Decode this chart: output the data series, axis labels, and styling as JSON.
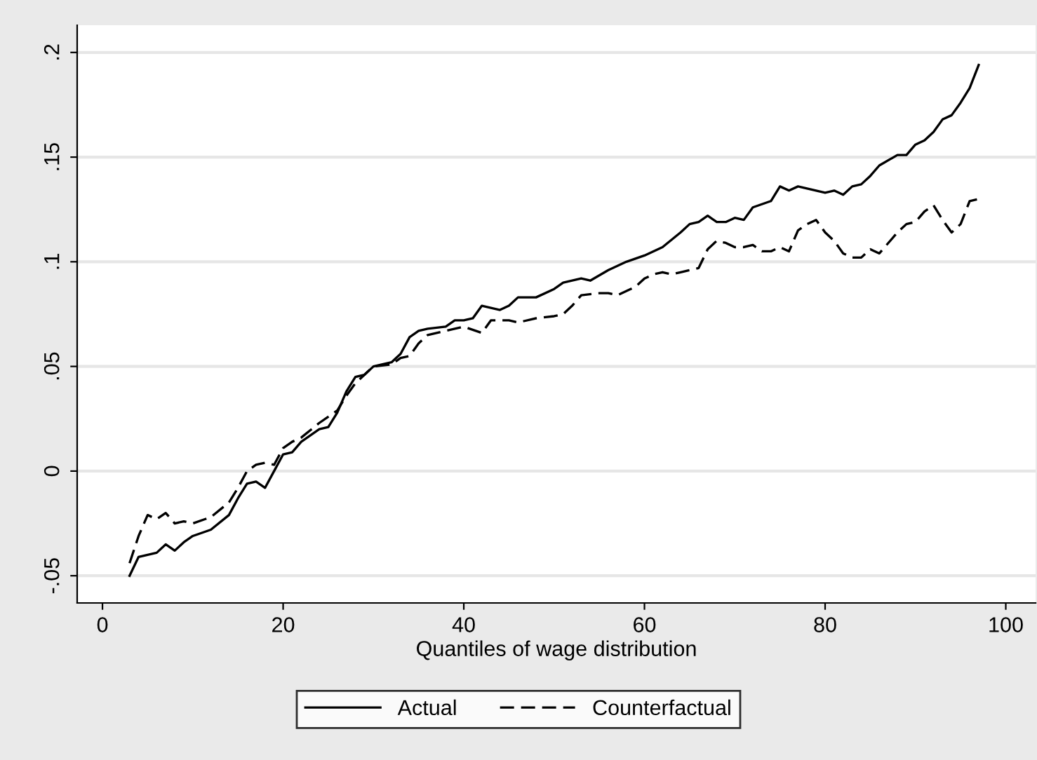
{
  "chart_data": {
    "type": "line",
    "xlabel": "Quantiles of wage distribution",
    "xlim": [
      -2.8,
      103.3
    ],
    "xticks": [
      0,
      20,
      40,
      60,
      80,
      100
    ],
    "ylim": [
      -0.063,
      0.213
    ],
    "yticks": [
      {
        "value": -0.05,
        "label": "-.05"
      },
      {
        "value": 0,
        "label": "0"
      },
      {
        "value": 0.05,
        "label": ".05"
      },
      {
        "value": 0.1,
        "label": ".1"
      },
      {
        "value": 0.15,
        "label": ".15"
      },
      {
        "value": 0.2,
        "label": ".2"
      }
    ],
    "grid": "y",
    "legend": "bottom",
    "marker": "none",
    "series": [
      {
        "name": "Actual",
        "color": "#000000",
        "line_style": "solid",
        "x": [
          3,
          4,
          6,
          7,
          8,
          9,
          10,
          12,
          14,
          15,
          16,
          17,
          18,
          19,
          20,
          21,
          22,
          24,
          25,
          26,
          27,
          28,
          29,
          30,
          32,
          33,
          34,
          35,
          36,
          38,
          39,
          40,
          41,
          42,
          44,
          45,
          46,
          48,
          50,
          51,
          53,
          54,
          56,
          58,
          60,
          62,
          64,
          65,
          66,
          67,
          68,
          69,
          70,
          71,
          72,
          74,
          75,
          76,
          77,
          79,
          80,
          81,
          82,
          83,
          84,
          85,
          86,
          88,
          89,
          90,
          91,
          92,
          93,
          94,
          95,
          96,
          97
        ],
        "values": [
          -0.05,
          -0.041,
          -0.039,
          -0.035,
          -0.038,
          -0.034,
          -0.031,
          -0.028,
          -0.021,
          -0.013,
          -0.006,
          -0.005,
          -0.008,
          0.0,
          0.008,
          0.009,
          0.014,
          0.02,
          0.021,
          0.028,
          0.038,
          0.045,
          0.046,
          0.05,
          0.052,
          0.056,
          0.064,
          0.067,
          0.068,
          0.069,
          0.072,
          0.072,
          0.073,
          0.079,
          0.077,
          0.079,
          0.083,
          0.083,
          0.087,
          0.09,
          0.092,
          0.091,
          0.096,
          0.1,
          0.103,
          0.107,
          0.114,
          0.118,
          0.119,
          0.122,
          0.119,
          0.119,
          0.121,
          0.12,
          0.126,
          0.129,
          0.136,
          0.134,
          0.136,
          0.134,
          0.133,
          0.134,
          0.132,
          0.136,
          0.137,
          0.141,
          0.146,
          0.151,
          0.151,
          0.156,
          0.158,
          0.162,
          0.168,
          0.17,
          0.176,
          0.183,
          0.194
        ]
      },
      {
        "name": "Counterfactual",
        "color": "#000000",
        "line_style": "dashed",
        "x": [
          3,
          4,
          5,
          6,
          7,
          8,
          9,
          10,
          12,
          14,
          15,
          16,
          17,
          18,
          19,
          20,
          21,
          22,
          24,
          25,
          26,
          27,
          28,
          30,
          32,
          33,
          34,
          35,
          36,
          38,
          39,
          40,
          42,
          43,
          45,
          46,
          48,
          50,
          51,
          52,
          53,
          55,
          56,
          57,
          59,
          60,
          61,
          62,
          63,
          64,
          65,
          66,
          67,
          68,
          69,
          70,
          71,
          72,
          73,
          74,
          75,
          76,
          77,
          78,
          79,
          80,
          81,
          82,
          83,
          84,
          85,
          86,
          87,
          88,
          89,
          90,
          91,
          92,
          93,
          94,
          95,
          96,
          97
        ],
        "values": [
          -0.044,
          -0.031,
          -0.021,
          -0.023,
          -0.02,
          -0.025,
          -0.024,
          -0.025,
          -0.022,
          -0.015,
          -0.008,
          0.0,
          0.003,
          0.004,
          0.003,
          0.011,
          0.014,
          0.016,
          0.023,
          0.026,
          0.029,
          0.036,
          0.042,
          0.05,
          0.051,
          0.054,
          0.055,
          0.061,
          0.065,
          0.067,
          0.068,
          0.069,
          0.066,
          0.072,
          0.072,
          0.071,
          0.073,
          0.074,
          0.075,
          0.079,
          0.084,
          0.085,
          0.085,
          0.084,
          0.088,
          0.092,
          0.094,
          0.095,
          0.094,
          0.095,
          0.096,
          0.097,
          0.106,
          0.11,
          0.109,
          0.107,
          0.107,
          0.108,
          0.105,
          0.105,
          0.107,
          0.105,
          0.115,
          0.118,
          0.12,
          0.114,
          0.11,
          0.104,
          0.102,
          0.102,
          0.106,
          0.104,
          0.109,
          0.114,
          0.118,
          0.119,
          0.124,
          0.127,
          0.12,
          0.114,
          0.118,
          0.129,
          0.13
        ]
      }
    ]
  }
}
